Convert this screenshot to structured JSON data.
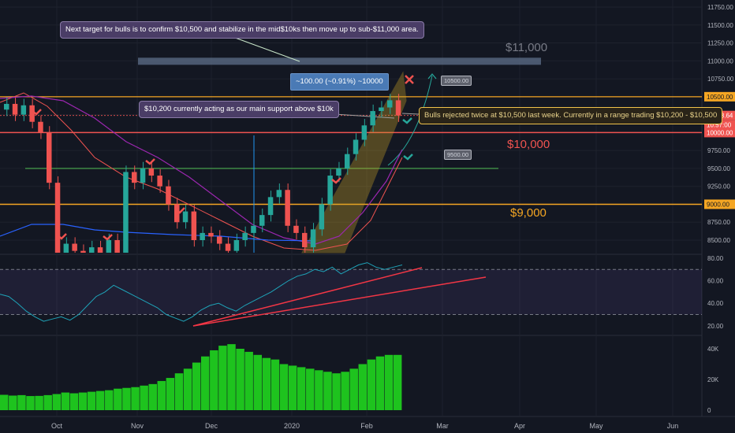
{
  "colors": {
    "background": "#131722",
    "up": "#26a69a",
    "down": "#ef5350",
    "orange": "#f5a623",
    "green_line": "#4caf50",
    "purple": "#9c27b0",
    "rsi": "#1fa3b8",
    "volume": "#1ec31e"
  },
  "annotations": {
    "target_note": "Next target for bulls is to confirm $10,500 and stabilize in the mid$10ks then move up to sub-$11,000 area.",
    "support_note": "$10,200 currently acting as our main support above $10k",
    "rejected_note": "Bulls rejected twice at $10,500 last week. Currently in a range trading $10,200 - $10,500",
    "measure_label": "~100.00 (~0.91%) ~10000",
    "label_11000": "$11,000",
    "label_10000": "$10,000",
    "label_9000": "$9,000",
    "flag_10500": "10500.00",
    "flag_9500": "9500.00"
  },
  "right_axis": {
    "current_price": "10238.64",
    "countdown": "10:57:00",
    "tag_10500": "10500.00",
    "tag_10000": "10000.00",
    "tag_9000": "9000.00"
  },
  "chart_data": [
    {
      "type": "candlestick",
      "title": "",
      "ylim": [
        8400,
        11800
      ],
      "yticks": [
        "11750.00",
        "11500.00",
        "11250.00",
        "11000.00",
        "10750.00",
        "10500.00",
        "10250.00",
        "10000.00",
        "9750.00",
        "9500.00",
        "9250.00",
        "9000.00",
        "8750.00",
        "8500.00"
      ],
      "x_ticks": [
        "Oct",
        "Nov",
        "Dec",
        "2020",
        "Feb",
        "Mar",
        "Apr",
        "May",
        "Jun"
      ],
      "close": [
        10400,
        10250,
        10380,
        10150,
        10000,
        9300,
        8300,
        8450,
        8350,
        8280,
        8400,
        8300,
        8500,
        8300,
        9450,
        9300,
        9500,
        9400,
        9250,
        9000,
        8750,
        8900,
        8500,
        8600,
        8550,
        8450,
        8350,
        8500,
        8600,
        8700,
        8850,
        9100,
        9200,
        8700,
        8600,
        8400,
        8650,
        9000,
        9400,
        9500,
        9700,
        9900,
        10100,
        10300,
        10350,
        10450,
        10238.64
      ],
      "horizontal_levels": [
        {
          "price": 11000,
          "label": "$11,000"
        },
        {
          "price": 10500,
          "label": "10500.00"
        },
        {
          "price": 10000,
          "label": "$10,000"
        },
        {
          "price": 9500,
          "label": "9500.00"
        },
        {
          "price": 9000,
          "label": "$9,000"
        }
      ]
    },
    {
      "type": "line",
      "name": "RSI",
      "yticks": [
        "80.00",
        "60.00",
        "40.00",
        "20.00"
      ],
      "ylim": [
        15,
        82
      ],
      "bands": [
        70,
        30
      ],
      "values": [
        48,
        46,
        40,
        33,
        28,
        24,
        26,
        28,
        25,
        30,
        38,
        46,
        50,
        56,
        52,
        48,
        44,
        40,
        36,
        30,
        27,
        24,
        28,
        34,
        38,
        40,
        36,
        33,
        38,
        42,
        46,
        50,
        55,
        60,
        64,
        66,
        70,
        68,
        72,
        66,
        70,
        74,
        76,
        72,
        70,
        72,
        74
      ]
    },
    {
      "type": "area",
      "name": "Volume histogram",
      "yticks": [
        "40K",
        "20K",
        "0"
      ],
      "ylim": [
        0,
        46000
      ],
      "values": [
        10000,
        9500,
        9800,
        9200,
        9300,
        9800,
        10500,
        11500,
        11000,
        11500,
        12000,
        12500,
        13000,
        14000,
        14500,
        15000,
        16000,
        17000,
        19000,
        21000,
        24000,
        27000,
        31000,
        35000,
        39000,
        42000,
        43000,
        40000,
        38000,
        36000,
        34000,
        33000,
        30000,
        29000,
        28000,
        27000,
        26000,
        25000,
        24000,
        25000,
        27000,
        30000,
        33000,
        35000,
        36000,
        36000
      ]
    }
  ]
}
